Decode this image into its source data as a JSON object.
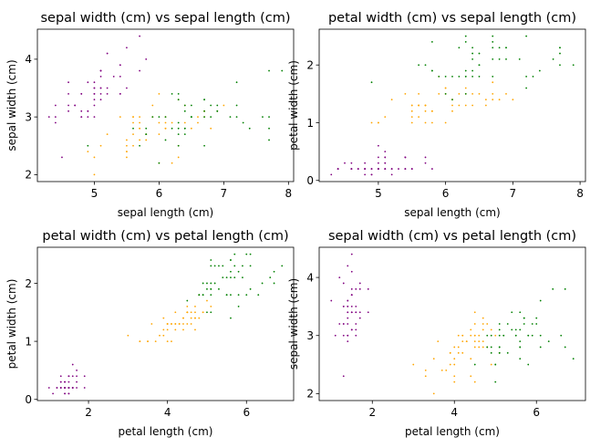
{
  "colors": {
    "setosa": "#800080",
    "versicolor": "#ffa500",
    "virginica": "#008000"
  },
  "chart_data": [
    {
      "type": "scatter",
      "title": "sepal width (cm) vs sepal length (cm)",
      "xlabel": "sepal length (cm)",
      "ylabel": "sepal width (cm)",
      "xkey": "sl",
      "ykey": "sw",
      "xlim": [
        4.12,
        8.08
      ],
      "ylim": [
        1.88,
        4.52
      ],
      "xticks": [
        5,
        6,
        7,
        8
      ],
      "yticks": [
        2,
        3,
        4
      ]
    },
    {
      "type": "scatter",
      "title": "petal width (cm) vs sepal length (cm)",
      "xlabel": "sepal length (cm)",
      "ylabel": "petal width (cm)",
      "xkey": "sl",
      "ykey": "pw",
      "xlim": [
        4.12,
        8.08
      ],
      "ylim": [
        -0.02,
        2.62
      ],
      "xticks": [
        5,
        6,
        7,
        8
      ],
      "yticks": [
        0,
        1,
        2
      ]
    },
    {
      "type": "scatter",
      "title": "petal width (cm) vs petal length (cm)",
      "xlabel": "petal length (cm)",
      "ylabel": "petal width (cm)",
      "xkey": "pl",
      "ykey": "pw",
      "xlim": [
        0.705,
        7.195
      ],
      "ylim": [
        -0.02,
        2.62
      ],
      "xticks": [
        2,
        4,
        6
      ],
      "yticks": [
        0,
        1,
        2
      ]
    },
    {
      "type": "scatter",
      "title": "sepal width (cm) vs petal length (cm)",
      "xlabel": "petal length (cm)",
      "ylabel": "sepal width (cm)",
      "xkey": "pl",
      "ykey": "sw",
      "xlim": [
        0.705,
        7.195
      ],
      "ylim": [
        1.88,
        4.52
      ],
      "xticks": [
        2,
        4,
        6
      ],
      "yticks": [
        2,
        3,
        4
      ]
    }
  ],
  "samples": {
    "setosa": [
      [
        5.1,
        3.5,
        1.4,
        0.2
      ],
      [
        4.9,
        3.0,
        1.4,
        0.2
      ],
      [
        4.7,
        3.2,
        1.3,
        0.2
      ],
      [
        4.6,
        3.1,
        1.5,
        0.2
      ],
      [
        5.0,
        3.6,
        1.4,
        0.2
      ],
      [
        5.4,
        3.9,
        1.7,
        0.4
      ],
      [
        4.6,
        3.4,
        1.4,
        0.3
      ],
      [
        5.0,
        3.4,
        1.5,
        0.2
      ],
      [
        4.4,
        2.9,
        1.4,
        0.2
      ],
      [
        4.9,
        3.1,
        1.5,
        0.1
      ],
      [
        5.4,
        3.7,
        1.5,
        0.2
      ],
      [
        4.8,
        3.4,
        1.6,
        0.2
      ],
      [
        4.8,
        3.0,
        1.4,
        0.1
      ],
      [
        4.3,
        3.0,
        1.1,
        0.1
      ],
      [
        5.8,
        4.0,
        1.2,
        0.2
      ],
      [
        5.7,
        4.4,
        1.5,
        0.4
      ],
      [
        5.4,
        3.9,
        1.3,
        0.4
      ],
      [
        5.1,
        3.5,
        1.4,
        0.3
      ],
      [
        5.7,
        3.8,
        1.7,
        0.3
      ],
      [
        5.1,
        3.8,
        1.5,
        0.3
      ],
      [
        5.4,
        3.4,
        1.7,
        0.2
      ],
      [
        5.1,
        3.7,
        1.5,
        0.4
      ],
      [
        4.6,
        3.6,
        1.0,
        0.2
      ],
      [
        5.1,
        3.3,
        1.7,
        0.5
      ],
      [
        4.8,
        3.4,
        1.9,
        0.2
      ],
      [
        5.0,
        3.0,
        1.6,
        0.2
      ],
      [
        5.0,
        3.4,
        1.6,
        0.4
      ],
      [
        5.2,
        3.5,
        1.5,
        0.2
      ],
      [
        5.2,
        3.4,
        1.4,
        0.2
      ],
      [
        4.7,
        3.2,
        1.6,
        0.2
      ],
      [
        4.8,
        3.1,
        1.6,
        0.2
      ],
      [
        5.4,
        3.4,
        1.5,
        0.4
      ],
      [
        5.2,
        4.1,
        1.5,
        0.1
      ],
      [
        5.5,
        4.2,
        1.4,
        0.2
      ],
      [
        4.9,
        3.1,
        1.5,
        0.2
      ],
      [
        5.0,
        3.2,
        1.2,
        0.2
      ],
      [
        5.5,
        3.5,
        1.3,
        0.2
      ],
      [
        4.9,
        3.6,
        1.4,
        0.1
      ],
      [
        4.4,
        3.0,
        1.3,
        0.2
      ],
      [
        5.1,
        3.4,
        1.5,
        0.2
      ],
      [
        5.0,
        3.5,
        1.3,
        0.3
      ],
      [
        4.5,
        2.3,
        1.3,
        0.3
      ],
      [
        4.4,
        3.2,
        1.3,
        0.2
      ],
      [
        5.0,
        3.5,
        1.6,
        0.6
      ],
      [
        5.1,
        3.8,
        1.9,
        0.4
      ],
      [
        4.8,
        3.0,
        1.4,
        0.3
      ],
      [
        5.1,
        3.8,
        1.6,
        0.2
      ],
      [
        4.6,
        3.2,
        1.4,
        0.2
      ],
      [
        5.3,
        3.7,
        1.5,
        0.2
      ],
      [
        5.0,
        3.3,
        1.4,
        0.2
      ]
    ],
    "versicolor": [
      [
        7.0,
        3.2,
        4.7,
        1.4
      ],
      [
        6.4,
        3.2,
        4.5,
        1.5
      ],
      [
        6.9,
        3.1,
        4.9,
        1.5
      ],
      [
        5.5,
        2.3,
        4.0,
        1.3
      ],
      [
        6.5,
        2.8,
        4.6,
        1.5
      ],
      [
        5.7,
        2.8,
        4.5,
        1.3
      ],
      [
        6.3,
        3.3,
        4.7,
        1.6
      ],
      [
        4.9,
        2.4,
        3.3,
        1.0
      ],
      [
        6.6,
        2.9,
        4.6,
        1.3
      ],
      [
        5.2,
        2.7,
        3.9,
        1.4
      ],
      [
        5.0,
        2.0,
        3.5,
        1.0
      ],
      [
        5.9,
        3.0,
        4.2,
        1.5
      ],
      [
        6.0,
        2.2,
        4.0,
        1.0
      ],
      [
        6.1,
        2.9,
        4.7,
        1.4
      ],
      [
        5.6,
        2.9,
        3.6,
        1.3
      ],
      [
        6.7,
        3.1,
        4.4,
        1.4
      ],
      [
        5.6,
        3.0,
        4.5,
        1.5
      ],
      [
        5.8,
        2.7,
        4.1,
        1.0
      ],
      [
        6.2,
        2.2,
        4.5,
        1.5
      ],
      [
        5.6,
        2.5,
        3.9,
        1.1
      ],
      [
        5.9,
        3.2,
        4.8,
        1.8
      ],
      [
        6.1,
        2.8,
        4.0,
        1.3
      ],
      [
        6.3,
        2.5,
        4.9,
        1.5
      ],
      [
        6.1,
        2.8,
        4.7,
        1.2
      ],
      [
        6.4,
        2.9,
        4.3,
        1.3
      ],
      [
        6.6,
        3.0,
        4.4,
        1.4
      ],
      [
        6.8,
        2.8,
        4.8,
        1.4
      ],
      [
        6.7,
        3.0,
        5.0,
        1.7
      ],
      [
        6.0,
        2.9,
        4.5,
        1.5
      ],
      [
        5.7,
        2.6,
        3.5,
        1.0
      ],
      [
        5.5,
        2.4,
        3.8,
        1.1
      ],
      [
        5.5,
        2.4,
        3.7,
        1.0
      ],
      [
        5.8,
        2.7,
        3.9,
        1.2
      ],
      [
        6.0,
        2.7,
        5.1,
        1.6
      ],
      [
        5.4,
        3.0,
        4.5,
        1.5
      ],
      [
        6.0,
        3.4,
        4.5,
        1.6
      ],
      [
        6.7,
        3.1,
        4.7,
        1.5
      ],
      [
        6.3,
        2.3,
        4.4,
        1.3
      ],
      [
        5.6,
        3.0,
        4.1,
        1.3
      ],
      [
        5.5,
        2.5,
        4.0,
        1.3
      ],
      [
        5.5,
        2.6,
        4.4,
        1.2
      ],
      [
        6.1,
        3.0,
        4.6,
        1.4
      ],
      [
        5.8,
        2.6,
        4.0,
        1.2
      ],
      [
        5.0,
        2.3,
        3.3,
        1.0
      ],
      [
        5.6,
        2.7,
        4.2,
        1.3
      ],
      [
        5.7,
        3.0,
        4.2,
        1.2
      ],
      [
        5.7,
        2.9,
        4.2,
        1.3
      ],
      [
        6.2,
        2.9,
        4.3,
        1.3
      ],
      [
        5.1,
        2.5,
        3.0,
        1.1
      ],
      [
        5.7,
        2.8,
        4.1,
        1.3
      ]
    ],
    "virginica": [
      [
        6.3,
        3.3,
        6.0,
        2.5
      ],
      [
        5.8,
        2.7,
        5.1,
        1.9
      ],
      [
        7.1,
        3.0,
        5.9,
        2.1
      ],
      [
        6.3,
        2.9,
        5.6,
        1.8
      ],
      [
        6.5,
        3.0,
        5.8,
        2.2
      ],
      [
        7.6,
        3.0,
        6.6,
        2.1
      ],
      [
        4.9,
        2.5,
        4.5,
        1.7
      ],
      [
        7.3,
        2.9,
        6.3,
        1.8
      ],
      [
        6.7,
        2.5,
        5.8,
        1.8
      ],
      [
        7.2,
        3.6,
        6.1,
        2.5
      ],
      [
        6.5,
        3.2,
        5.1,
        2.0
      ],
      [
        6.4,
        2.7,
        5.3,
        1.9
      ],
      [
        6.8,
        3.0,
        5.5,
        2.1
      ],
      [
        5.7,
        2.5,
        5.0,
        2.0
      ],
      [
        5.8,
        2.8,
        5.1,
        2.4
      ],
      [
        6.4,
        3.2,
        5.3,
        2.3
      ],
      [
        6.5,
        3.0,
        5.5,
        1.8
      ],
      [
        7.7,
        3.8,
        6.7,
        2.2
      ],
      [
        7.7,
        2.6,
        6.9,
        2.3
      ],
      [
        6.0,
        2.2,
        5.0,
        1.5
      ],
      [
        6.9,
        3.2,
        5.7,
        2.3
      ],
      [
        5.6,
        2.8,
        4.9,
        2.0
      ],
      [
        7.7,
        2.8,
        6.7,
        2.0
      ],
      [
        6.3,
        2.7,
        4.9,
        1.8
      ],
      [
        6.7,
        3.3,
        5.7,
        2.1
      ],
      [
        7.2,
        3.2,
        6.0,
        1.8
      ],
      [
        6.2,
        2.8,
        4.8,
        1.8
      ],
      [
        6.1,
        3.0,
        4.9,
        1.8
      ],
      [
        6.4,
        2.8,
        5.6,
        2.1
      ],
      [
        7.2,
        3.0,
        5.8,
        1.6
      ],
      [
        7.4,
        2.8,
        6.1,
        1.9
      ],
      [
        7.9,
        3.8,
        6.4,
        2.0
      ],
      [
        6.4,
        2.8,
        5.6,
        2.2
      ],
      [
        6.3,
        2.8,
        5.1,
        1.5
      ],
      [
        6.1,
        2.6,
        5.6,
        1.4
      ],
      [
        7.7,
        3.0,
        6.1,
        2.3
      ],
      [
        6.3,
        3.4,
        5.6,
        2.4
      ],
      [
        6.4,
        3.1,
        5.5,
        1.8
      ],
      [
        6.0,
        3.0,
        4.8,
        1.8
      ],
      [
        6.9,
        3.1,
        5.4,
        2.1
      ],
      [
        6.7,
        3.1,
        5.6,
        2.4
      ],
      [
        6.9,
        3.1,
        5.1,
        2.3
      ],
      [
        5.8,
        2.7,
        5.1,
        1.9
      ],
      [
        6.8,
        3.2,
        5.9,
        2.3
      ],
      [
        6.7,
        3.3,
        5.7,
        2.5
      ],
      [
        6.7,
        3.0,
        5.2,
        2.3
      ],
      [
        6.3,
        2.5,
        5.0,
        1.9
      ],
      [
        6.5,
        3.0,
        5.2,
        2.0
      ],
      [
        6.2,
        3.4,
        5.4,
        2.3
      ],
      [
        5.9,
        3.0,
        5.1,
        1.8
      ]
    ]
  }
}
